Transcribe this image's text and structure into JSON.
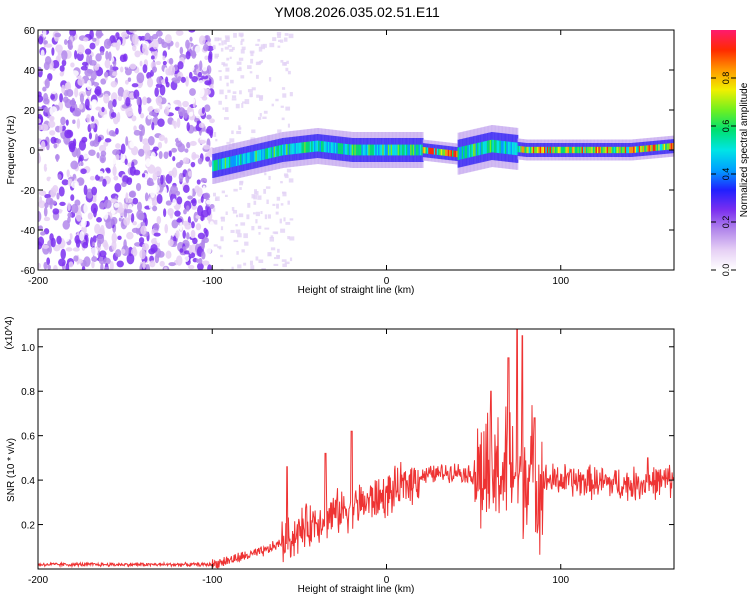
{
  "title": "YM08.2026.035.02.51.E11",
  "chart_data": [
    {
      "type": "heatmap",
      "xlabel": "Height of straight line (km)",
      "ylabel": "Frequency (Hz)",
      "xlim": [
        -200,
        165
      ],
      "ylim": [
        -60,
        60
      ],
      "xticks": [
        -200,
        -100,
        0,
        100
      ],
      "yticks": [
        -60,
        -40,
        -20,
        0,
        20,
        40,
        60
      ],
      "colorbar": {
        "label": "Normalized spectral amplitude",
        "range": [
          0,
          1
        ],
        "ticks": [
          0.0,
          0.2,
          0.4,
          0.6,
          0.8
        ],
        "tick_labels": [
          "0.0",
          "0.2",
          "0.4",
          "0.6",
          "0.8"
        ],
        "colors": [
          "#ffffff",
          "#e6d0f5",
          "#b388eb",
          "#7b2ff0",
          "#2020ff",
          "#00a0ff",
          "#00e5e5",
          "#00e070",
          "#70f020",
          "#f0f000",
          "#ff9900",
          "#ff2a00",
          "#ff1a6e"
        ]
      },
      "regions": [
        {
          "x": [
            -200,
            -100
          ],
          "description": "broadband noise across all frequencies"
        },
        {
          "x": [
            -100,
            165
          ],
          "ridge": [
            [
              -100,
              -8
            ],
            [
              -80,
              -4
            ],
            [
              -60,
              0
            ],
            [
              -40,
              2
            ],
            [
              -20,
              0
            ],
            [
              0,
              0
            ],
            [
              20,
              0
            ],
            [
              40,
              -2
            ],
            [
              60,
              2
            ],
            [
              80,
              0
            ],
            [
              100,
              0
            ],
            [
              120,
              0
            ],
            [
              140,
              0
            ],
            [
              165,
              2
            ]
          ]
        }
      ],
      "grid": false
    },
    {
      "type": "line",
      "xlabel": "Height of straight line (km)",
      "ylabel": "SNR (10 * v/v)",
      "y_multiplier": "(x10^4)",
      "xlim": [
        -200,
        165
      ],
      "ylim": [
        0,
        1.08
      ],
      "xticks": [
        -200,
        -100,
        0,
        100
      ],
      "yticks": [
        0.2,
        0.4,
        0.6,
        0.8,
        1.0
      ],
      "ytick_labels": [
        "0.2",
        "0.4",
        "0.6",
        "0.8",
        "1.0"
      ],
      "color": "#ee3333",
      "envelope": [
        [
          -200,
          0.02
        ],
        [
          -150,
          0.02
        ],
        [
          -100,
          0.02
        ],
        [
          -90,
          0.04
        ],
        [
          -70,
          0.08
        ],
        [
          -55,
          0.14
        ],
        [
          -40,
          0.22
        ],
        [
          -20,
          0.28
        ],
        [
          0,
          0.33
        ],
        [
          20,
          0.42
        ],
        [
          40,
          0.44
        ],
        [
          50,
          0.42
        ],
        [
          60,
          0.42
        ],
        [
          70,
          0.45
        ],
        [
          80,
          0.44
        ],
        [
          90,
          0.4
        ],
        [
          100,
          0.4
        ],
        [
          120,
          0.39
        ],
        [
          140,
          0.38
        ],
        [
          165,
          0.4
        ]
      ],
      "peaks": [
        [
          -57,
          0.46
        ],
        [
          -35,
          0.52
        ],
        [
          -20,
          0.62
        ],
        [
          60,
          0.8
        ],
        [
          70,
          0.95
        ],
        [
          75,
          1.08
        ],
        [
          78,
          1.05
        ],
        [
          85,
          0.68
        ],
        [
          150,
          0.5
        ]
      ],
      "grid": false
    }
  ]
}
